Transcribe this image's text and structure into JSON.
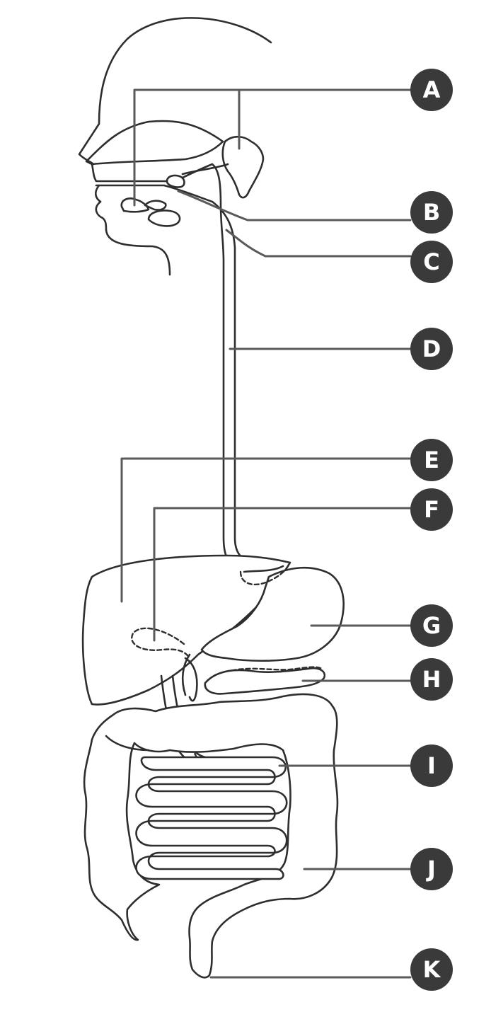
{
  "diagram": {
    "labels": [
      {
        "id": "A",
        "letter": "A"
      },
      {
        "id": "B",
        "letter": "B"
      },
      {
        "id": "C",
        "letter": "C"
      },
      {
        "id": "D",
        "letter": "D"
      },
      {
        "id": "E",
        "letter": "E"
      },
      {
        "id": "F",
        "letter": "F"
      },
      {
        "id": "G",
        "letter": "G"
      },
      {
        "id": "H",
        "letter": "H"
      },
      {
        "id": "I",
        "letter": "I"
      },
      {
        "id": "J",
        "letter": "J"
      },
      {
        "id": "K",
        "letter": "K"
      }
    ],
    "colors": {
      "marker": "#3a3a3a",
      "marker_text": "#ffffff",
      "leader": "#5a5a5a",
      "outline": "#2e2e2e"
    }
  }
}
